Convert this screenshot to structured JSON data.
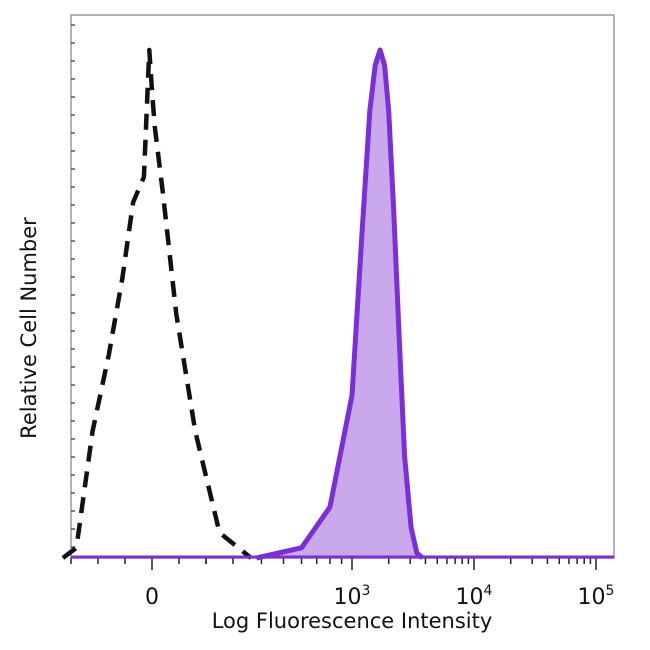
{
  "chart_data": {
    "type": "area",
    "title": "",
    "xlabel": "Log Fluorescence Intensity",
    "ylabel": "Relative Cell Number",
    "x_scale": "biexponential",
    "xlim": [
      -400,
      200000
    ],
    "ylim": [
      0,
      100
    ],
    "grid": false,
    "x_ticks": [
      {
        "base": "0",
        "exp": "",
        "value": 0
      },
      {
        "base": "10",
        "exp": "3",
        "value": 1000
      },
      {
        "base": "10",
        "exp": "4",
        "value": 10000
      },
      {
        "base": "10",
        "exp": "5",
        "value": 100000
      }
    ],
    "series": [
      {
        "style": "dashed",
        "color": "#111111",
        "filled": false,
        "x": [
          -330,
          -280,
          -220,
          -160,
          -110,
          -70,
          -30,
          -10,
          0,
          10,
          40,
          90,
          160,
          250,
          360
        ],
        "y": [
          0,
          2,
          25,
          40,
          55,
          70,
          75,
          100,
          92,
          85,
          72,
          48,
          25,
          5,
          0
        ]
      },
      {
        "style": "solid",
        "color": "#7b2fd6",
        "fill": "#c9a9ec",
        "filled": true,
        "x": [
          380,
          600,
          800,
          1000,
          1200,
          1400,
          1550,
          1700,
          1850,
          2000,
          2200,
          2450,
          2700,
          3050,
          3400,
          3800
        ],
        "y": [
          0,
          2,
          10,
          32,
          63,
          88,
          97,
          100,
          97,
          88,
          68,
          42,
          20,
          6,
          1,
          0
        ]
      }
    ]
  }
}
